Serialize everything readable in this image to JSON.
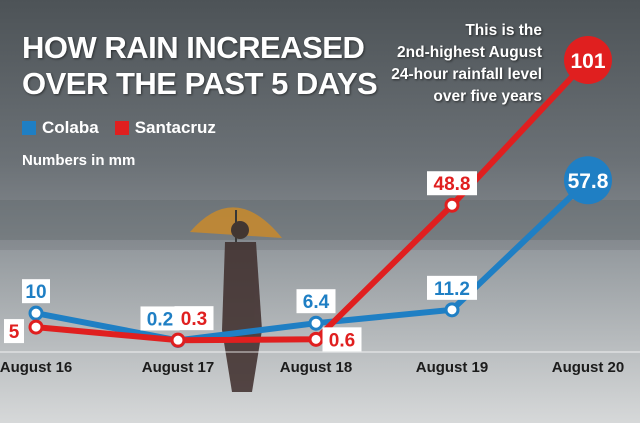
{
  "title_lines": [
    "HOW RAIN INCREASED",
    "OVER THE PAST 5 DAYS"
  ],
  "unit_note": "Numbers in mm",
  "annotation": [
    "This is the",
    "2nd-highest August",
    "24-hour rainfall level",
    "over five years"
  ],
  "colors": {
    "colaba": "#1f7fc4",
    "santacruz": "#e01f1f"
  },
  "chart_data": {
    "type": "line",
    "categories": [
      "August 16",
      "August 17",
      "August 18",
      "August 19",
      "August 20"
    ],
    "series": [
      {
        "name": "Colaba",
        "values": [
          10,
          0.2,
          6.4,
          11.2,
          57.8
        ]
      },
      {
        "name": "Santacruz",
        "values": [
          5,
          0.3,
          0.6,
          48.8,
          101
        ]
      }
    ],
    "ylim": [
      0,
      101
    ],
    "legend": "top-left",
    "grid": false
  }
}
